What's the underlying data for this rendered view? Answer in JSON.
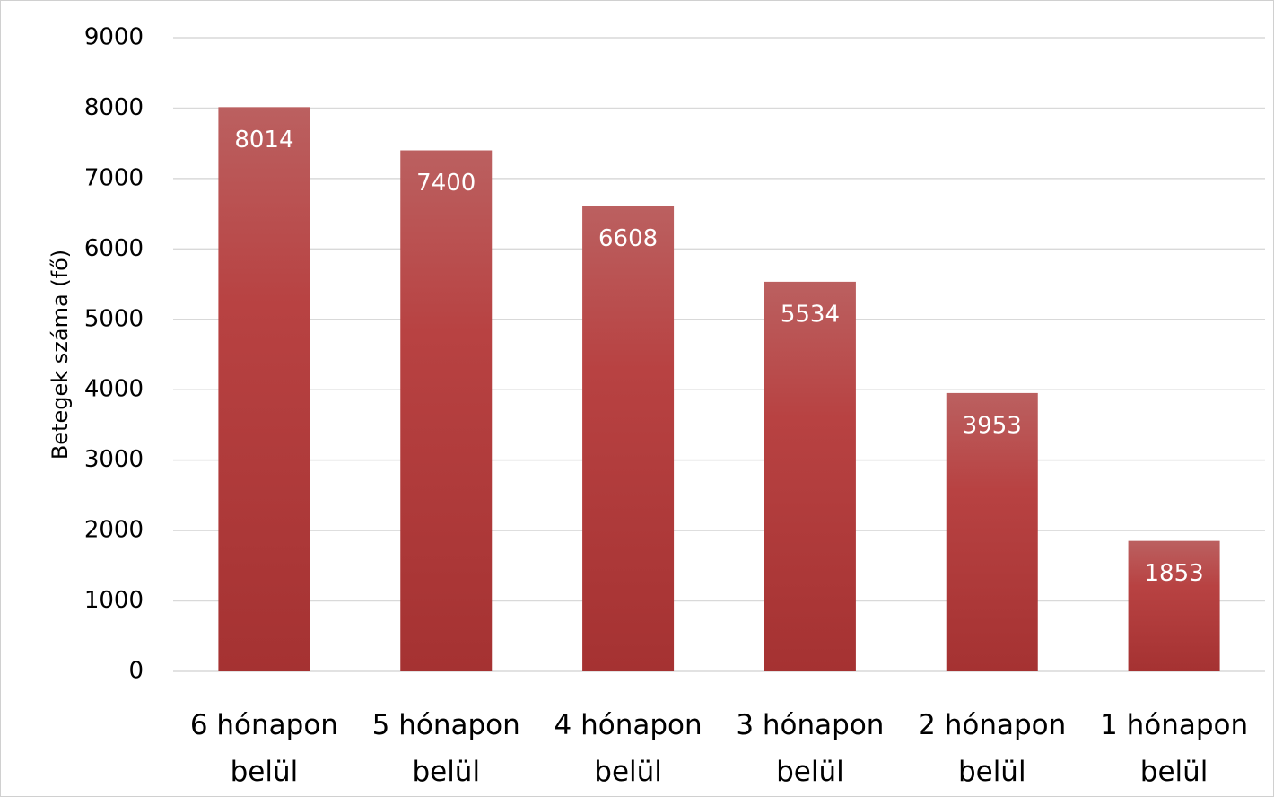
{
  "chart_data": {
    "type": "bar",
    "y_label": "Betegek száma (fő)",
    "categories": [
      "6 hónapon belül",
      "5 hónapon belül",
      "4 hónapon belül",
      "3 hónapon belül",
      "2 hónapon belül",
      "1 hónapon belül"
    ],
    "values": [
      8014,
      7400,
      6608,
      5534,
      3953,
      1853
    ],
    "color": "#b03a3a",
    "ylim": [
      0,
      9000
    ],
    "yticks": [
      0,
      1000,
      2000,
      3000,
      4000,
      5000,
      6000,
      7000,
      8000,
      9000
    ],
    "grid": true,
    "data_labels": true
  }
}
